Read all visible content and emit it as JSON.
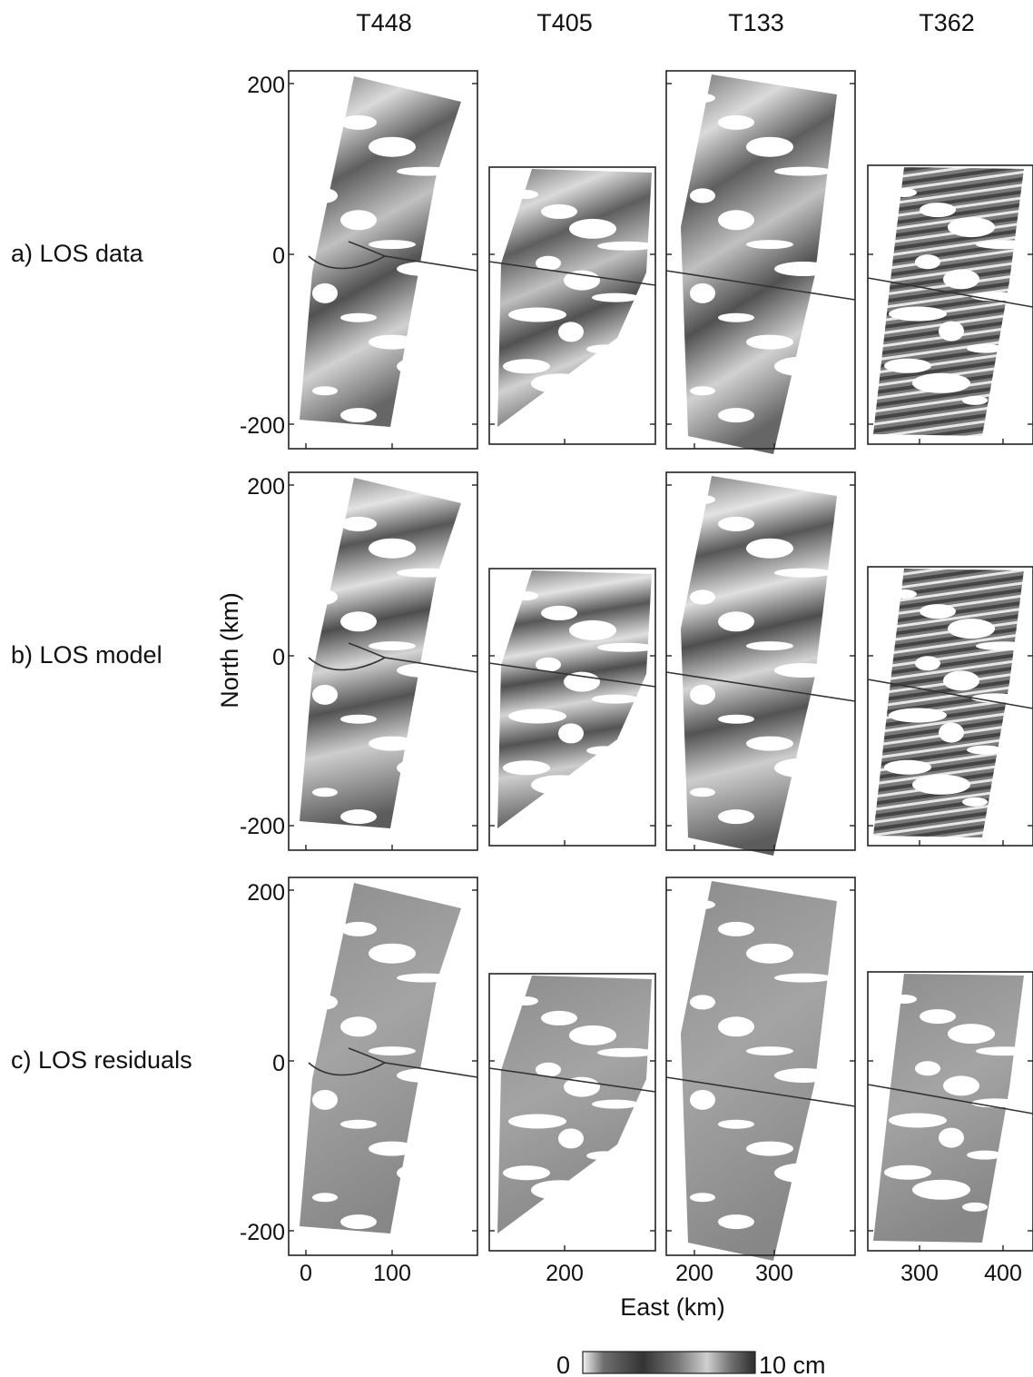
{
  "figure": {
    "columns": [
      "T448",
      "T405",
      "T133",
      "T362"
    ],
    "rows": [
      "a) LOS data",
      "b) LOS model",
      "c) LOS residuals"
    ],
    "y_axis_label": "North (km)",
    "x_axis_label": "East (km)",
    "y_tick_labels": [
      "200",
      "0",
      "-200"
    ],
    "x_tick_labels": {
      "T448": [
        "0",
        "100"
      ],
      "T405": [
        "200"
      ],
      "T133": [
        "200",
        "300"
      ],
      "T362": [
        "300",
        "400"
      ]
    },
    "colorbar": {
      "min_label": "0",
      "max_label": "10 cm"
    }
  },
  "colors": {
    "frame": "#222222",
    "fault": "#333333",
    "background": "#ffffff"
  }
}
